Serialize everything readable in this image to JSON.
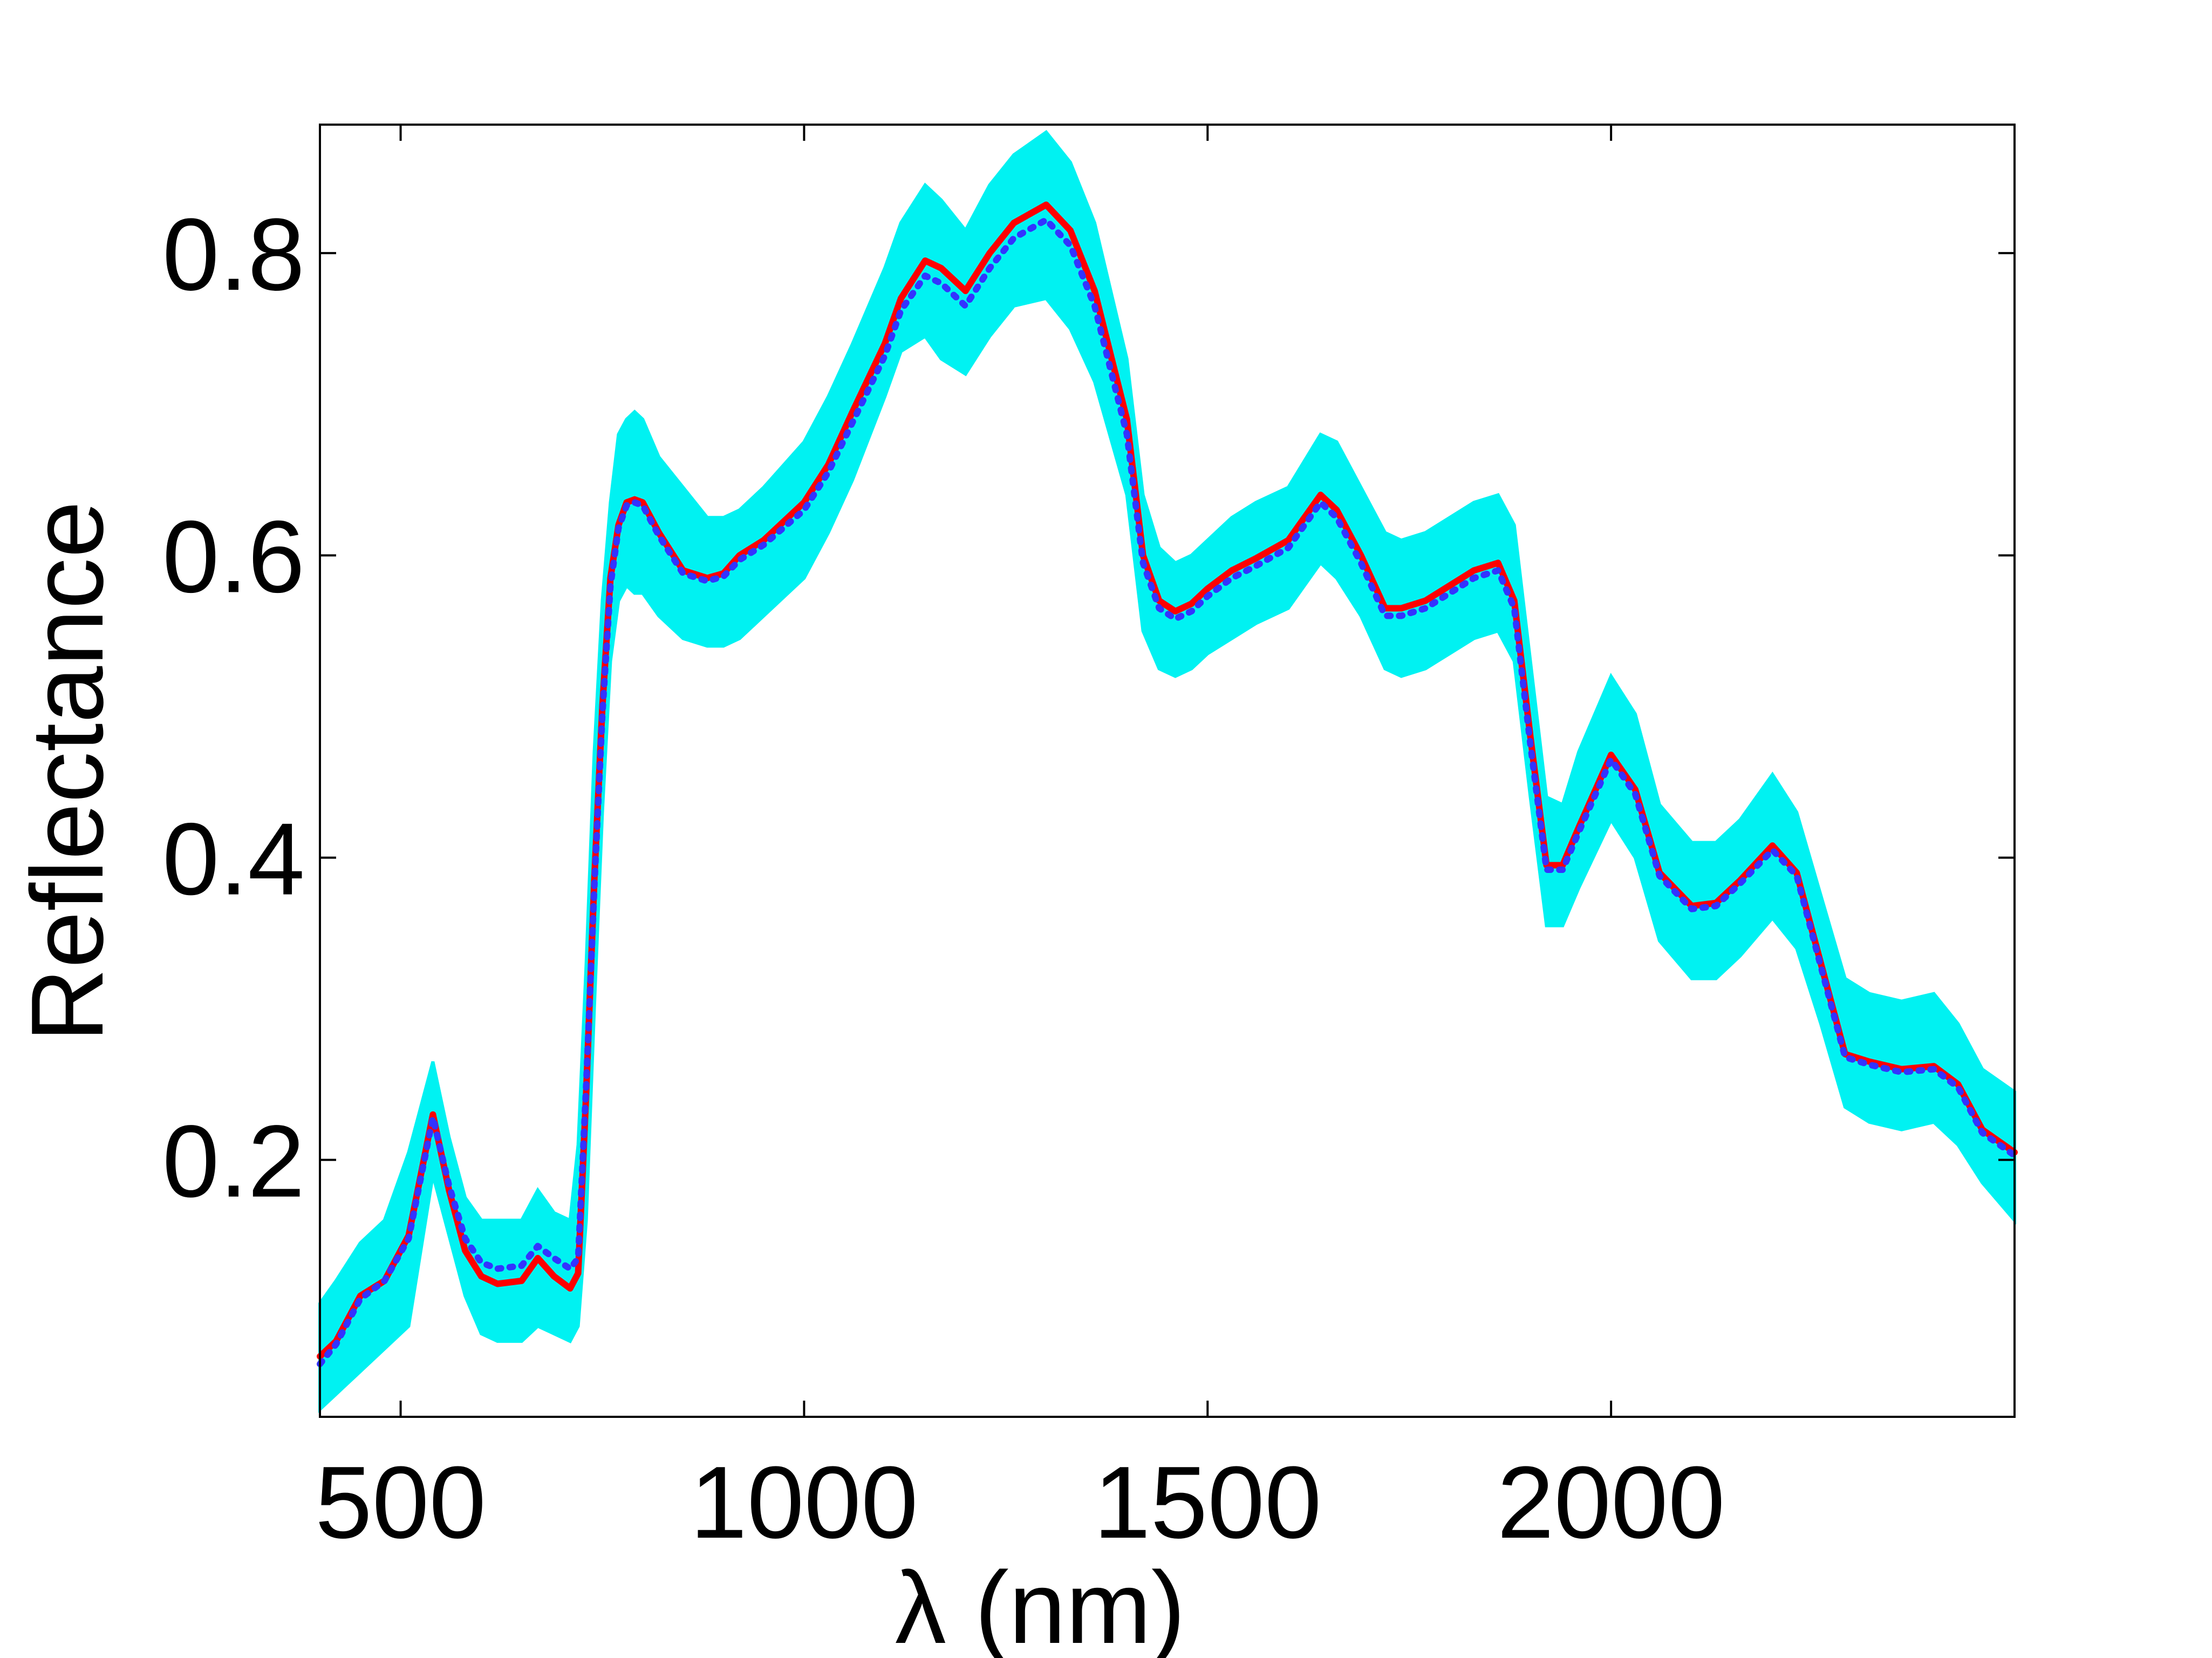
{
  "chart_data": {
    "type": "line",
    "title": "",
    "xlabel": "λ (nm)",
    "ylabel": "Reflectance",
    "xlim": [
      400,
      2500
    ],
    "ylim": [
      0.03,
      0.885
    ],
    "xticks": [
      500,
      1000,
      1500,
      2000
    ],
    "xtick_labels": [
      "500",
      "1000",
      "1500",
      "2000"
    ],
    "yticks": [
      0.2,
      0.4,
      0.6,
      0.8
    ],
    "ytick_labels": [
      "0.2",
      "0.4",
      "0.6",
      "0.8"
    ],
    "grid": false,
    "legend": "none",
    "x": [
      400,
      420,
      450,
      480,
      510,
      540,
      560,
      580,
      600,
      620,
      650,
      670,
      690,
      710,
      720,
      730,
      740,
      750,
      760,
      770,
      780,
      790,
      800,
      820,
      850,
      880,
      900,
      920,
      950,
      1000,
      1030,
      1060,
      1100,
      1120,
      1150,
      1170,
      1200,
      1230,
      1260,
      1300,
      1330,
      1360,
      1400,
      1420,
      1440,
      1460,
      1480,
      1500,
      1530,
      1560,
      1600,
      1640,
      1660,
      1690,
      1720,
      1740,
      1770,
      1800,
      1830,
      1860,
      1880,
      1900,
      1920,
      1940,
      1960,
      2000,
      2030,
      2060,
      2100,
      2130,
      2160,
      2200,
      2230,
      2260,
      2290,
      2320,
      2360,
      2400,
      2430,
      2460,
      2500
    ],
    "series": [
      {
        "color": "#00F2F2",
        "style": "band",
        "upper": [
          0.105,
          0.12,
          0.145,
          0.16,
          0.205,
          0.265,
          0.215,
          0.175,
          0.16,
          0.16,
          0.16,
          0.18,
          0.165,
          0.16,
          0.21,
          0.33,
          0.47,
          0.57,
          0.635,
          0.68,
          0.69,
          0.695,
          0.69,
          0.665,
          0.645,
          0.625,
          0.625,
          0.63,
          0.645,
          0.675,
          0.705,
          0.74,
          0.79,
          0.82,
          0.845,
          0.835,
          0.815,
          0.845,
          0.865,
          0.88,
          0.86,
          0.82,
          0.73,
          0.64,
          0.605,
          0.595,
          0.6,
          0.61,
          0.625,
          0.635,
          0.645,
          0.68,
          0.675,
          0.645,
          0.615,
          0.61,
          0.615,
          0.625,
          0.635,
          0.64,
          0.62,
          0.53,
          0.44,
          0.435,
          0.47,
          0.52,
          0.495,
          0.435,
          0.41,
          0.41,
          0.425,
          0.455,
          0.43,
          0.375,
          0.32,
          0.31,
          0.305,
          0.31,
          0.29,
          0.26,
          0.245
        ]
      },
      {
        "color": "#00F2F2",
        "style": "band",
        "lower": [
          0.035,
          0.045,
          0.06,
          0.075,
          0.09,
          0.19,
          0.15,
          0.11,
          0.085,
          0.08,
          0.08,
          0.09,
          0.085,
          0.08,
          0.09,
          0.16,
          0.3,
          0.43,
          0.53,
          0.57,
          0.58,
          0.575,
          0.575,
          0.56,
          0.545,
          0.54,
          0.54,
          0.545,
          0.56,
          0.585,
          0.615,
          0.65,
          0.705,
          0.735,
          0.745,
          0.73,
          0.72,
          0.745,
          0.765,
          0.77,
          0.75,
          0.715,
          0.64,
          0.55,
          0.525,
          0.52,
          0.525,
          0.535,
          0.545,
          0.555,
          0.565,
          0.595,
          0.585,
          0.56,
          0.525,
          0.52,
          0.525,
          0.535,
          0.545,
          0.55,
          0.53,
          0.44,
          0.355,
          0.355,
          0.38,
          0.425,
          0.4,
          0.345,
          0.32,
          0.32,
          0.335,
          0.36,
          0.34,
          0.29,
          0.235,
          0.225,
          0.22,
          0.225,
          0.21,
          0.185,
          0.16
        ]
      },
      {
        "color": "#FF0000",
        "style": "solid",
        "values": [
          0.07,
          0.08,
          0.11,
          0.12,
          0.15,
          0.23,
          0.18,
          0.14,
          0.123,
          0.118,
          0.12,
          0.135,
          0.123,
          0.115,
          0.125,
          0.245,
          0.385,
          0.5,
          0.585,
          0.62,
          0.635,
          0.637,
          0.635,
          0.615,
          0.59,
          0.585,
          0.588,
          0.6,
          0.61,
          0.635,
          0.66,
          0.695,
          0.74,
          0.77,
          0.795,
          0.79,
          0.775,
          0.8,
          0.82,
          0.832,
          0.815,
          0.775,
          0.69,
          0.6,
          0.57,
          0.563,
          0.568,
          0.578,
          0.59,
          0.598,
          0.61,
          0.64,
          0.63,
          0.6,
          0.565,
          0.565,
          0.57,
          0.58,
          0.59,
          0.595,
          0.57,
          0.48,
          0.395,
          0.395,
          0.42,
          0.468,
          0.445,
          0.39,
          0.368,
          0.37,
          0.385,
          0.408,
          0.39,
          0.33,
          0.27,
          0.265,
          0.26,
          0.262,
          0.25,
          0.22,
          0.205
        ]
      },
      {
        "color": "#3333FF",
        "style": "dotted",
        "values": [
          0.065,
          0.078,
          0.108,
          0.12,
          0.148,
          0.228,
          0.183,
          0.148,
          0.132,
          0.128,
          0.13,
          0.143,
          0.135,
          0.128,
          0.135,
          0.25,
          0.38,
          0.495,
          0.58,
          0.618,
          0.633,
          0.635,
          0.633,
          0.613,
          0.588,
          0.583,
          0.586,
          0.597,
          0.607,
          0.63,
          0.655,
          0.688,
          0.732,
          0.762,
          0.785,
          0.78,
          0.765,
          0.79,
          0.81,
          0.822,
          0.805,
          0.765,
          0.68,
          0.595,
          0.565,
          0.558,
          0.563,
          0.573,
          0.585,
          0.593,
          0.605,
          0.635,
          0.625,
          0.595,
          0.56,
          0.56,
          0.565,
          0.575,
          0.585,
          0.59,
          0.565,
          0.475,
          0.392,
          0.392,
          0.417,
          0.465,
          0.442,
          0.388,
          0.366,
          0.368,
          0.383,
          0.405,
          0.388,
          0.328,
          0.268,
          0.263,
          0.258,
          0.26,
          0.248,
          0.218,
          0.203
        ]
      }
    ]
  }
}
